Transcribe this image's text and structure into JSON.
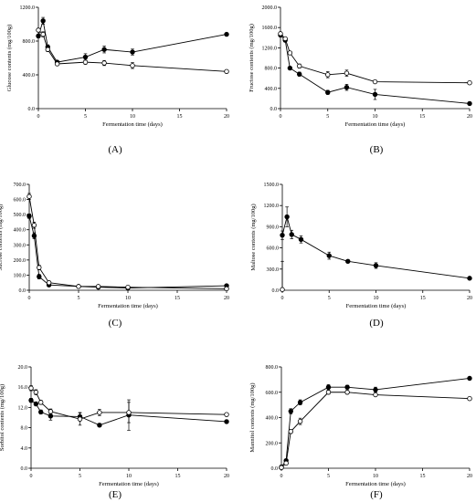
{
  "chart_data": [
    {
      "type": "line",
      "letter": "(A)",
      "ylabel": "Glucose contents (mg/100g)",
      "xlabel": "Fermentation time (days)",
      "xlim": [
        0,
        20
      ],
      "ylim": [
        0,
        1200
      ],
      "xticks": [
        0,
        5,
        10,
        15,
        20
      ],
      "xtick_labels": [
        "0",
        "5",
        "10",
        "15",
        "20"
      ],
      "yticks": [
        0,
        400,
        800,
        1200
      ],
      "ytick_labels": [
        "0.0",
        "400.0",
        "800.0",
        "1200.0"
      ],
      "series": [
        {
          "marker": "filled",
          "x": [
            0,
            0.5,
            1,
            2,
            5,
            7,
            10,
            20
          ],
          "y": [
            860,
            1040,
            730,
            550,
            610,
            700,
            670,
            880
          ],
          "err": [
            20,
            40,
            25,
            20,
            40,
            40,
            35,
            15
          ]
        },
        {
          "marker": "open",
          "x": [
            0,
            0.5,
            1,
            2,
            5,
            7,
            10,
            20
          ],
          "y": [
            930,
            880,
            700,
            530,
            550,
            540,
            510,
            440
          ],
          "err": [
            20,
            30,
            25,
            20,
            25,
            30,
            35,
            15
          ]
        }
      ]
    },
    {
      "type": "line",
      "letter": "(B)",
      "ylabel": "Fructose contents (mg/100g)",
      "xlabel": "Fermentation time (days)",
      "xlim": [
        0,
        20
      ],
      "ylim": [
        0,
        2000
      ],
      "xticks": [
        0,
        5,
        10,
        15,
        20
      ],
      "xtick_labels": [
        "0",
        "5",
        "10",
        "15",
        "20"
      ],
      "yticks": [
        0,
        400,
        800,
        1200,
        1600,
        2000
      ],
      "ytick_labels": [
        "0.0",
        "400.0",
        "800.0",
        "1200.0",
        "1600.0",
        "2000.0"
      ],
      "series": [
        {
          "marker": "filled",
          "x": [
            0,
            0.5,
            1,
            2,
            5,
            7,
            10,
            20
          ],
          "y": [
            1450,
            1350,
            800,
            680,
            320,
            420,
            280,
            100
          ],
          "err": [
            30,
            30,
            30,
            40,
            40,
            60,
            100,
            20
          ]
        },
        {
          "marker": "open",
          "x": [
            0,
            0.5,
            1,
            2,
            5,
            7,
            10,
            20
          ],
          "y": [
            1480,
            1380,
            1100,
            840,
            670,
            700,
            530,
            510
          ],
          "err": [
            30,
            30,
            30,
            40,
            60,
            60,
            20,
            20
          ]
        }
      ]
    },
    {
      "type": "line",
      "letter": "(C)",
      "ylabel": "Sucrose contents (mg/100g)",
      "xlabel": "Fermentation time (days)",
      "xlim": [
        0,
        20
      ],
      "ylim": [
        0,
        700
      ],
      "xticks": [
        0,
        5,
        10,
        15,
        20
      ],
      "xtick_labels": [
        "0",
        "5",
        "10",
        "15",
        "20"
      ],
      "yticks": [
        0,
        100,
        200,
        300,
        400,
        500,
        600,
        700
      ],
      "ytick_labels": [
        "0.0",
        "100.0",
        "200.0",
        "300.0",
        "400.0",
        "500.0",
        "600.0",
        "700.0"
      ],
      "series": [
        {
          "marker": "filled",
          "x": [
            0,
            0.5,
            1,
            2,
            5,
            7,
            10,
            20
          ],
          "y": [
            490,
            360,
            90,
            35,
            25,
            20,
            15,
            30
          ],
          "err": [
            15,
            20,
            15,
            5,
            5,
            5,
            5,
            5
          ]
        },
        {
          "marker": "open",
          "x": [
            0,
            0.5,
            1,
            2,
            5,
            7,
            10,
            20
          ],
          "y": [
            620,
            430,
            150,
            50,
            25,
            25,
            20,
            10
          ],
          "err": [
            20,
            20,
            15,
            5,
            5,
            5,
            5,
            5
          ]
        }
      ]
    },
    {
      "type": "line",
      "letter": "(D)",
      "ylabel": "Maltose contents (mg/100g)",
      "xlabel": "Fermentation time (days)",
      "xlim": [
        0,
        20
      ],
      "ylim": [
        0,
        1500
      ],
      "xticks": [
        0,
        5,
        10,
        15,
        20
      ],
      "xtick_labels": [
        "0",
        "5",
        "10",
        "15",
        "20"
      ],
      "yticks": [
        0,
        300,
        600,
        900,
        1200,
        1500
      ],
      "ytick_labels": [
        "0.0",
        "300.0",
        "600.0",
        "900.0",
        "1200.0",
        "1500.0"
      ],
      "series": [
        {
          "marker": "filled",
          "x": [
            0,
            0.5,
            1,
            2,
            5,
            7,
            10,
            20
          ],
          "y": [
            780,
            1040,
            790,
            720,
            490,
            410,
            350,
            170
          ],
          "err": [
            60,
            140,
            60,
            50,
            50,
            20,
            40,
            10
          ]
        },
        {
          "marker": "open",
          "x": [
            0
          ],
          "y": [
            10
          ],
          "err": [
            400
          ]
        }
      ]
    },
    {
      "type": "line",
      "letter": "(E)",
      "ylabel": "Sorbitol contents (mg/100g)",
      "xlabel": "Fermentation time (days)",
      "xlim": [
        0,
        20
      ],
      "ylim": [
        0,
        20
      ],
      "xticks": [
        0,
        5,
        10,
        15,
        20
      ],
      "xtick_labels": [
        "0",
        "5",
        "10",
        "15",
        "20"
      ],
      "yticks": [
        0,
        4,
        8,
        12,
        16,
        20
      ],
      "ytick_labels": [
        "0.0",
        "4.0",
        "8.0",
        "12.0",
        "16.0",
        "20.0"
      ],
      "series": [
        {
          "marker": "filled",
          "x": [
            0,
            0.5,
            1,
            2,
            5,
            7,
            10,
            20
          ],
          "y": [
            13.4,
            12.7,
            11.1,
            10.3,
            10.2,
            8.5,
            10.5,
            9.2
          ],
          "err": [
            0.4,
            0.4,
            0.4,
            0.8,
            0.8,
            0.3,
            3.0,
            0.3
          ]
        },
        {
          "marker": "open",
          "x": [
            0,
            0.5,
            1,
            2,
            5,
            7,
            10,
            20
          ],
          "y": [
            15.8,
            15.0,
            13.0,
            11.2,
            9.7,
            11.0,
            11.0,
            10.6
          ],
          "err": [
            0.5,
            0.5,
            0.4,
            0.5,
            1.2,
            0.6,
            2.0,
            0.3
          ]
        }
      ]
    },
    {
      "type": "line",
      "letter": "(F)",
      "ylabel": "Mannitol contents (mg/100g)",
      "xlabel": "Fermentation time (days)",
      "xlim": [
        0,
        20
      ],
      "ylim": [
        0,
        800
      ],
      "xticks": [
        0,
        5,
        10,
        15,
        20
      ],
      "xtick_labels": [
        "0",
        "5",
        "10",
        "15",
        "20"
      ],
      "yticks": [
        0,
        200,
        400,
        600,
        800
      ],
      "ytick_labels": [
        "0.0",
        "200.0",
        "400.0",
        "600.0",
        "800.0"
      ],
      "series": [
        {
          "marker": "filled",
          "x": [
            0,
            0.5,
            1,
            2,
            5,
            7,
            10,
            20
          ],
          "y": [
            10,
            60,
            450,
            520,
            640,
            640,
            620,
            710
          ],
          "err": [
            5,
            10,
            20,
            20,
            20,
            15,
            20,
            10
          ]
        },
        {
          "marker": "open",
          "x": [
            0,
            0.5,
            1,
            2,
            5,
            7,
            10,
            20
          ],
          "y": [
            5,
            40,
            290,
            370,
            600,
            600,
            580,
            550
          ],
          "err": [
            5,
            10,
            15,
            25,
            15,
            15,
            10,
            10
          ]
        }
      ]
    }
  ]
}
